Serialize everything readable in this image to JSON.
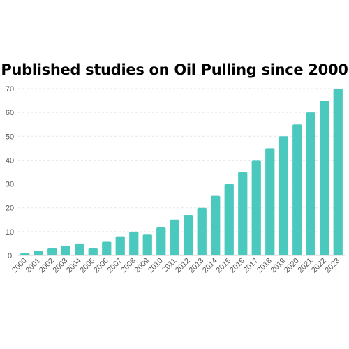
{
  "colors": {
    "bar": "#4cc9bf",
    "grid": "#e6e6e6",
    "axis": "#cccccc",
    "tick_text": "#555555"
  },
  "chart_data": {
    "type": "bar",
    "title": "Published studies on Oil Pulling since 2000",
    "xlabel": "",
    "ylabel": "",
    "ylim": [
      0,
      70
    ],
    "yticks": [
      0,
      10,
      20,
      30,
      40,
      50,
      60,
      70
    ],
    "grid": true,
    "categories": [
      "2000",
      "2001",
      "2002",
      "2003",
      "2004",
      "2005",
      "2006",
      "2007",
      "2008",
      "2009",
      "2010",
      "2011",
      "2012",
      "2013",
      "2014",
      "2015",
      "2016",
      "2017",
      "2018",
      "2019",
      "2020",
      "2021",
      "2022",
      "2023"
    ],
    "values": [
      1,
      2,
      3,
      4,
      5,
      3,
      6,
      8,
      10,
      9,
      12,
      15,
      17,
      20,
      25,
      30,
      35,
      40,
      45,
      50,
      55,
      60,
      65,
      70
    ]
  }
}
